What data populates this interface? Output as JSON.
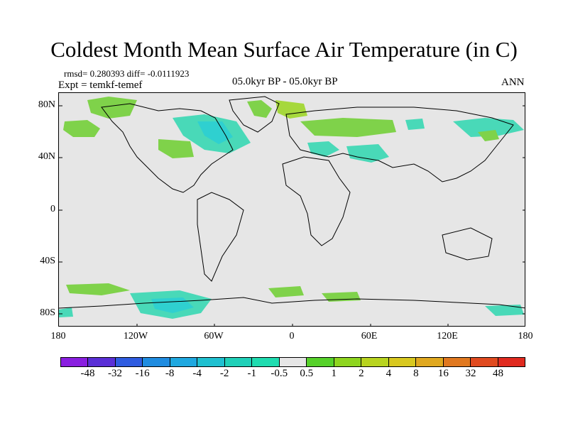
{
  "title": "Coldest Month Mean Surface Air Temperature (in C)",
  "stats": "rmsd= 0.280393 diff= -0.0111923",
  "expt": "Expt = temkf-temef",
  "period": "05.0kyr BP - 05.0kyr BP",
  "season": "ANN",
  "y_ticks": [
    "80N",
    "40N",
    "0",
    "40S",
    "80S"
  ],
  "x_ticks": [
    "180",
    "120W",
    "60W",
    "0",
    "60E",
    "120E",
    "180"
  ],
  "colorbar": {
    "labels": [
      "-48",
      "-32",
      "-16",
      "-8",
      "-4",
      "-2",
      "-1",
      "-0.5",
      "0.5",
      "1",
      "2",
      "4",
      "8",
      "16",
      "32",
      "48"
    ],
    "colors": [
      "#8a1fe0",
      "#5a2fd6",
      "#2f5ce0",
      "#1f8ce0",
      "#1fa8e0",
      "#1fc0d0",
      "#1fd0b8",
      "#1fdcb0",
      "#e6e6e6",
      "#56d12a",
      "#8ed51f",
      "#b8d41f",
      "#d8c81f",
      "#e0a81f",
      "#e0781f",
      "#e04a1f",
      "#e02a1f"
    ]
  },
  "colors": {
    "map_bg": "#e6e6e6",
    "green": "#7fd24a",
    "light_green": "#a6d83c",
    "teal": "#49d9b8",
    "cyan": "#2fd0d0",
    "blue": "#2fb0e0"
  }
}
